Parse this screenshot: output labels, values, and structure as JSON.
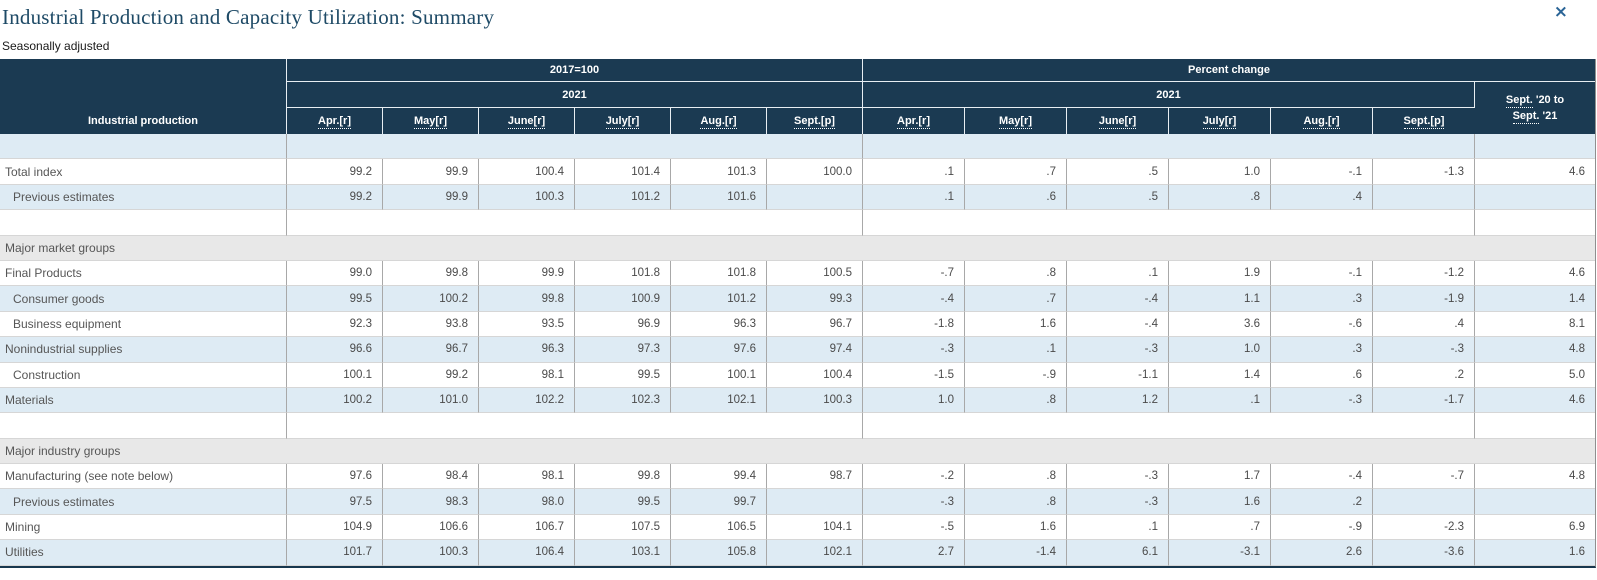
{
  "page": {
    "title": "Industrial Production and Capacity Utilization: Summary",
    "subtitle": "Seasonally adjusted",
    "close_icon": "×"
  },
  "colors": {
    "header_navy": "#1b3a52",
    "row_blue": "#deebf4",
    "section_gray": "#e8e8e8",
    "title_blue": "#1e4a66",
    "close_blue": "#2a6496"
  },
  "table": {
    "corner_header": "Industrial production",
    "group_index_label": "2017=100",
    "group_pct_label": "Percent change",
    "year": "2021",
    "months": [
      "Apr.[r]",
      "May[r]",
      "June[r]",
      "July[r]",
      "Aug.[r]",
      "Sept.[p]"
    ],
    "yoy_header": {
      "line1_abbr": "Sept.",
      "line1_rest": " '20 to",
      "line2_abbr": "Sept.",
      "line2_rest": " '21"
    },
    "rows": [
      {
        "type": "spacer",
        "shade": "blue"
      },
      {
        "type": "data",
        "shade": "white",
        "label": "Total index",
        "indent": false,
        "index": [
          "99.2",
          "99.9",
          "100.4",
          "101.4",
          "101.3",
          "100.0"
        ],
        "pct": [
          ".1",
          ".7",
          ".5",
          "1.0",
          "-.1",
          "-1.3"
        ],
        "yoy": "4.6"
      },
      {
        "type": "data",
        "shade": "blue",
        "label": "Previous estimates",
        "indent": true,
        "index": [
          "99.2",
          "99.9",
          "100.3",
          "101.2",
          "101.6",
          ""
        ],
        "pct": [
          ".1",
          ".6",
          ".5",
          ".8",
          ".4",
          ""
        ],
        "yoy": ""
      },
      {
        "type": "spacer",
        "shade": "white"
      },
      {
        "type": "section",
        "shade": "gray",
        "label": "Major market groups"
      },
      {
        "type": "data",
        "shade": "white",
        "label": "Final Products",
        "indent": false,
        "index": [
          "99.0",
          "99.8",
          "99.9",
          "101.8",
          "101.8",
          "100.5"
        ],
        "pct": [
          "-.7",
          ".8",
          ".1",
          "1.9",
          "-.1",
          "-1.2"
        ],
        "yoy": "4.6"
      },
      {
        "type": "data",
        "shade": "blue",
        "label": "Consumer goods",
        "indent": true,
        "index": [
          "99.5",
          "100.2",
          "99.8",
          "100.9",
          "101.2",
          "99.3"
        ],
        "pct": [
          "-.4",
          ".7",
          "-.4",
          "1.1",
          ".3",
          "-1.9"
        ],
        "yoy": "1.4"
      },
      {
        "type": "data",
        "shade": "white",
        "label": "Business equipment",
        "indent": true,
        "index": [
          "92.3",
          "93.8",
          "93.5",
          "96.9",
          "96.3",
          "96.7"
        ],
        "pct": [
          "-1.8",
          "1.6",
          "-.4",
          "3.6",
          "-.6",
          ".4"
        ],
        "yoy": "8.1"
      },
      {
        "type": "data",
        "shade": "blue",
        "label": "Nonindustrial supplies",
        "indent": false,
        "index": [
          "96.6",
          "96.7",
          "96.3",
          "97.3",
          "97.6",
          "97.4"
        ],
        "pct": [
          "-.3",
          ".1",
          "-.3",
          "1.0",
          ".3",
          "-.3"
        ],
        "yoy": "4.8"
      },
      {
        "type": "data",
        "shade": "white",
        "label": "Construction",
        "indent": true,
        "index": [
          "100.1",
          "99.2",
          "98.1",
          "99.5",
          "100.1",
          "100.4"
        ],
        "pct": [
          "-1.5",
          "-.9",
          "-1.1",
          "1.4",
          ".6",
          ".2"
        ],
        "yoy": "5.0"
      },
      {
        "type": "data",
        "shade": "blue",
        "label": "Materials",
        "indent": false,
        "index": [
          "100.2",
          "101.0",
          "102.2",
          "102.3",
          "102.1",
          "100.3"
        ],
        "pct": [
          "1.0",
          ".8",
          "1.2",
          ".1",
          "-.3",
          "-1.7"
        ],
        "yoy": "4.6"
      },
      {
        "type": "spacer",
        "shade": "white"
      },
      {
        "type": "section",
        "shade": "gray",
        "label": "Major industry groups"
      },
      {
        "type": "data",
        "shade": "white",
        "label": "Manufacturing (see note below)",
        "indent": false,
        "index": [
          "97.6",
          "98.4",
          "98.1",
          "99.8",
          "99.4",
          "98.7"
        ],
        "pct": [
          "-.2",
          ".8",
          "-.3",
          "1.7",
          "-.4",
          "-.7"
        ],
        "yoy": "4.8"
      },
      {
        "type": "data",
        "shade": "blue",
        "label": "Previous estimates",
        "indent": true,
        "index": [
          "97.5",
          "98.3",
          "98.0",
          "99.5",
          "99.7",
          ""
        ],
        "pct": [
          "-.3",
          ".8",
          "-.3",
          "1.6",
          ".2",
          ""
        ],
        "yoy": ""
      },
      {
        "type": "data",
        "shade": "white",
        "label": "Mining",
        "indent": false,
        "index": [
          "104.9",
          "106.6",
          "106.7",
          "107.5",
          "106.5",
          "104.1"
        ],
        "pct": [
          "-.5",
          "1.6",
          ".1",
          ".7",
          "-.9",
          "-2.3"
        ],
        "yoy": "6.9"
      },
      {
        "type": "data",
        "shade": "blue",
        "label": "Utilities",
        "indent": false,
        "index": [
          "101.7",
          "100.3",
          "106.4",
          "103.1",
          "105.8",
          "102.1"
        ],
        "pct": [
          "2.7",
          "-1.4",
          "6.1",
          "-3.1",
          "2.6",
          "-3.6"
        ],
        "yoy": "1.6"
      }
    ]
  }
}
